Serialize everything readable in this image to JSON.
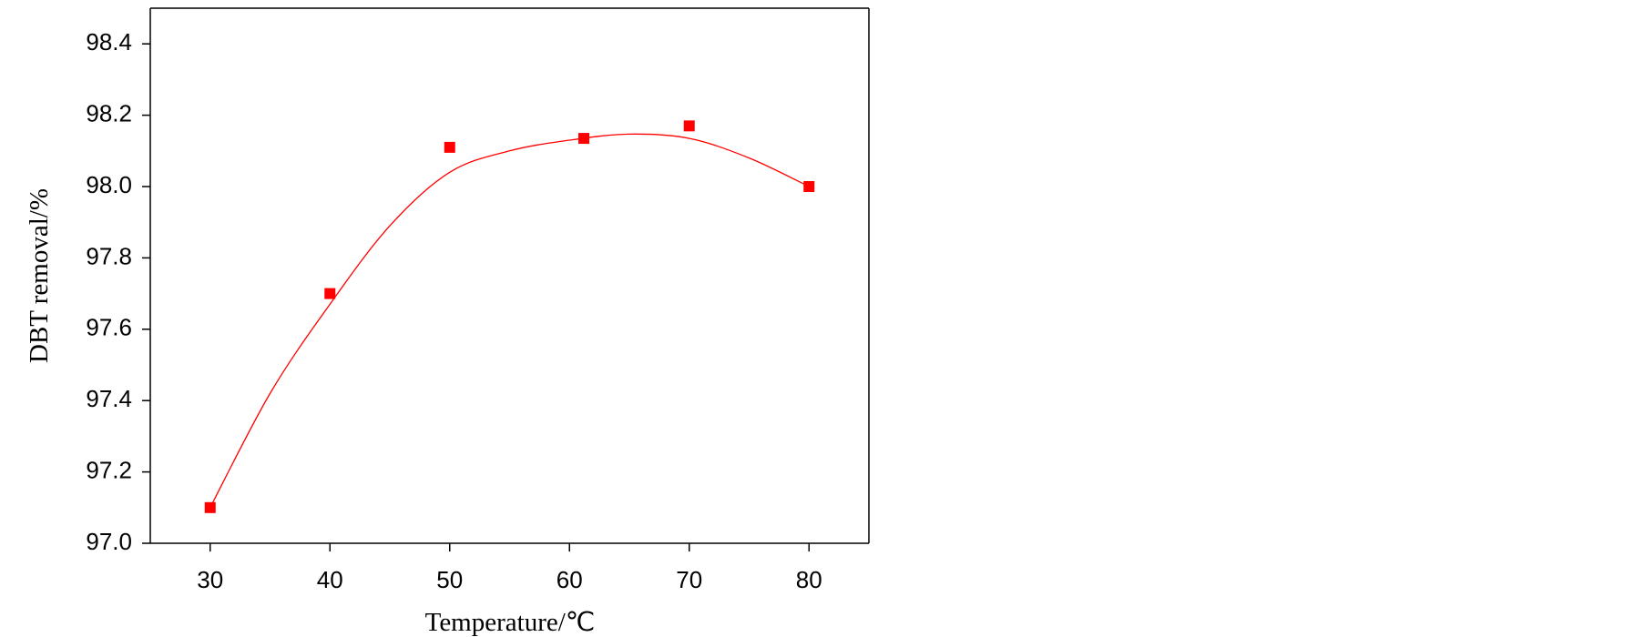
{
  "chart_data": {
    "type": "scatter",
    "x_label": "Temperature/℃",
    "y_label": "DBT removal/%",
    "xlim": [
      25,
      85
    ],
    "ylim": [
      97,
      98.5
    ],
    "xticks": [
      30,
      40,
      50,
      60,
      70,
      80
    ],
    "yticks": [
      {
        "value": 97,
        "label": "97.0"
      },
      97.2,
      97.4,
      97.6,
      97.8,
      {
        "value": 98,
        "label": "98.0"
      },
      98.2,
      98.4
    ],
    "series": [
      {
        "color": "#ff0000",
        "marker": "square",
        "x": [
          30,
          40,
          50,
          61.2,
          70,
          80
        ],
        "values": [
          97.1,
          97.7,
          98.11,
          98.135,
          98.17,
          98.0
        ]
      },
      {
        "color": "#ff0000",
        "marker": "none",
        "x": [
          30,
          35,
          40,
          45,
          50,
          55,
          60,
          65,
          70,
          75,
          80
        ],
        "values": [
          97.1,
          97.42,
          97.67,
          97.89,
          98.04,
          98.1,
          98.13,
          98.147,
          98.135,
          98.08,
          98.0
        ]
      }
    ]
  }
}
